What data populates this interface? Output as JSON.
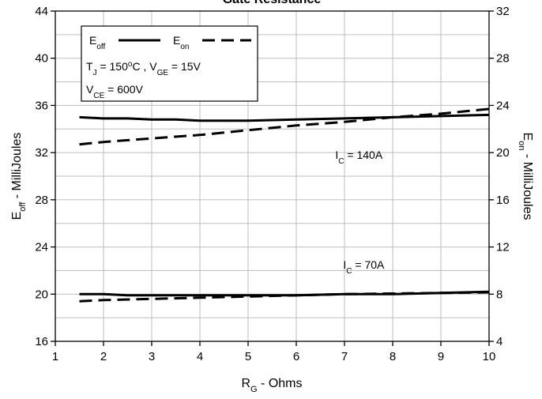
{
  "chart_data": {
    "type": "line",
    "title": "Gate Resistance",
    "xlabel": {
      "main": "R",
      "sub": "G",
      "rest": " - Ohms"
    },
    "ylabel_left": {
      "main": "E",
      "sub": "off",
      "rest": " - MilliJoules"
    },
    "ylabel_right": {
      "main": "E",
      "sub": "on",
      "rest": " - MilliJoules"
    },
    "xlim": [
      1,
      10
    ],
    "ylim_left": [
      16,
      44
    ],
    "ylim_right": [
      4,
      32
    ],
    "xticks": [
      1,
      2,
      3,
      4,
      5,
      6,
      7,
      8,
      9,
      10
    ],
    "yticks_left": [
      16,
      20,
      24,
      28,
      32,
      36,
      40,
      44
    ],
    "yticks_right": [
      4,
      8,
      12,
      16,
      20,
      24,
      28,
      32
    ],
    "grid": true,
    "legend": {
      "placement": "top-left",
      "off_label": {
        "main": "E",
        "sub": "off"
      },
      "on_label": {
        "main": "E",
        "sub": "on"
      },
      "cond1": {
        "a": "T",
        "a_sub": "J",
        "b": " = 150",
        "b_sup": "o",
        "c": "C ,  V",
        "c_sub": "GE",
        "d": " = 15V"
      },
      "cond2": {
        "a": "V",
        "a_sub": "CE",
        "b": " = 600V"
      }
    },
    "annotations": [
      {
        "main": "I",
        "sub": "C",
        "rest": " = 140A",
        "x": 7.3,
        "y": 31.8
      },
      {
        "main": "I",
        "sub": "C",
        "rest": " = 70A",
        "x": 7.4,
        "y": 22.5
      }
    ],
    "series": [
      {
        "name": "E_off",
        "axis": "left",
        "group": "140A",
        "x": [
          1.5,
          2,
          2.5,
          3,
          3.5,
          4,
          5,
          6,
          7,
          8,
          9,
          10
        ],
        "y": [
          35.0,
          34.9,
          34.9,
          34.8,
          34.8,
          34.7,
          34.7,
          34.8,
          34.9,
          35.0,
          35.1,
          35.2
        ]
      },
      {
        "name": "E_on",
        "axis": "right",
        "group": "140A",
        "x": [
          1.5,
          2,
          3,
          4,
          5,
          6,
          7,
          8,
          9,
          10
        ],
        "y": [
          20.7,
          20.9,
          21.2,
          21.5,
          21.9,
          22.3,
          22.6,
          23.0,
          23.3,
          23.7
        ]
      },
      {
        "name": "E_off",
        "axis": "left",
        "group": "70A",
        "x": [
          1.5,
          2,
          2.5,
          3,
          4,
          5,
          6,
          7,
          8,
          9,
          10
        ],
        "y": [
          20.0,
          20.0,
          19.9,
          19.9,
          19.9,
          19.9,
          19.9,
          20.0,
          20.0,
          20.1,
          20.2
        ]
      },
      {
        "name": "E_on",
        "axis": "right",
        "group": "70A",
        "x": [
          1.5,
          2,
          3,
          4,
          5,
          6,
          7,
          8,
          9,
          10
        ],
        "y": [
          7.4,
          7.5,
          7.6,
          7.7,
          7.8,
          7.9,
          8.0,
          8.05,
          8.1,
          8.15
        ]
      }
    ]
  }
}
